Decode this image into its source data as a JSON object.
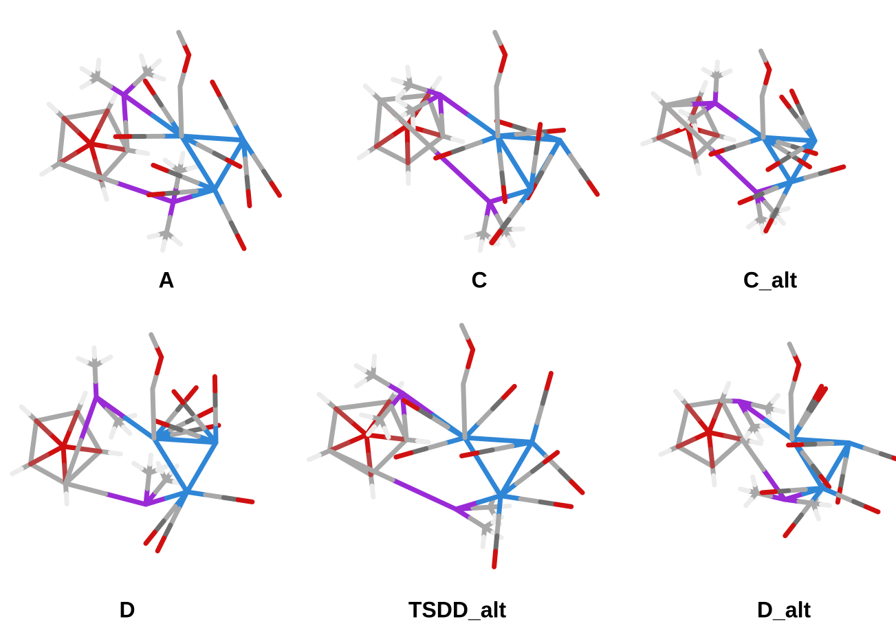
{
  "panels": [
    {
      "label": "A"
    },
    {
      "label": "C"
    },
    {
      "label": "C_alt"
    },
    {
      "label": "D"
    },
    {
      "label": "TSDD_alt"
    },
    {
      "label": "D_alt"
    }
  ]
}
